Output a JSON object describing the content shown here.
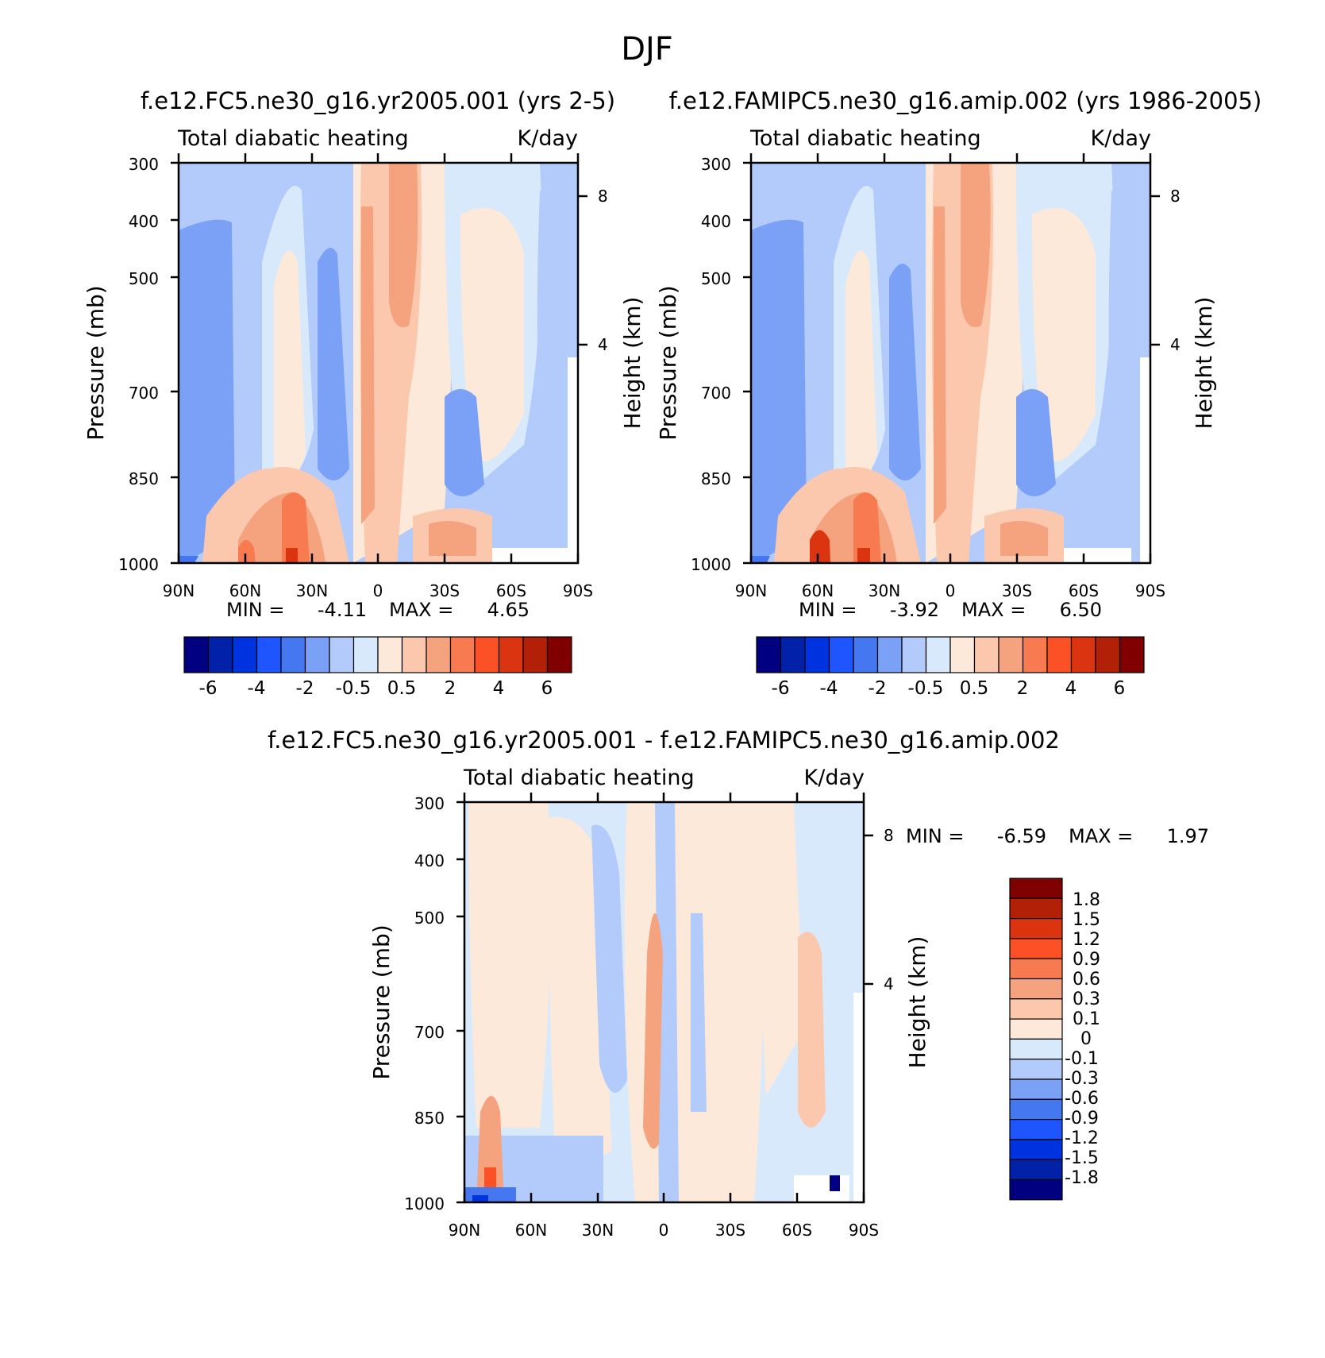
{
  "figure_title": "DJF",
  "colors": {
    "main_levels": [
      "#000080",
      "#0021a8",
      "#0033e0",
      "#1f55ff",
      "#4477f0",
      "#7ba1f7",
      "#b3cbfa",
      "#d9e9fc",
      "#fde9d9",
      "#fbc8ad",
      "#f5a27f",
      "#f77a50",
      "#fc5127",
      "#db3410",
      "#b32008",
      "#800000"
    ],
    "diff_levels": [
      "#000080",
      "#0021a8",
      "#0033e0",
      "#1f55ff",
      "#4477f0",
      "#7ba1f7",
      "#b3cbfa",
      "#d9e9fc",
      "#fde9d9",
      "#fbc8ad",
      "#f5a27f",
      "#f77a50",
      "#fc5127",
      "#db3410",
      "#b32008",
      "#800000"
    ]
  },
  "panels": {
    "left": {
      "title": "f.e12.FC5.ne30_g16.yr2005.001 (yrs 2-5)",
      "subtitle_left": "Total diabatic heating",
      "subtitle_right": "K/day",
      "ylabel": "Pressure (mb)",
      "ylabel_right": "Height (km)",
      "stats": {
        "min_label": "MIN =",
        "min_value": "-4.11",
        "max_label": "MAX =",
        "max_value": "4.65"
      },
      "colorbar_labels": [
        "-6",
        "-4",
        "-2",
        "-0.5",
        "0.5",
        "2",
        "4",
        "6"
      ]
    },
    "right": {
      "title": "f.e12.FAMIPC5.ne30_g16.amip.002 (yrs 1986-2005)",
      "subtitle_left": "Total diabatic heating",
      "subtitle_right": "K/day",
      "ylabel": "Pressure (mb)",
      "ylabel_right": "Height (km)",
      "stats": {
        "min_label": "MIN =",
        "min_value": "-3.92",
        "max_label": "MAX =",
        "max_value": "6.50"
      },
      "colorbar_labels": [
        "-6",
        "-4",
        "-2",
        "-0.5",
        "0.5",
        "2",
        "4",
        "6"
      ]
    },
    "diff": {
      "title": "f.e12.FC5.ne30_g16.yr2005.001 - f.e12.FAMIPC5.ne30_g16.amip.002",
      "subtitle_left": "Total diabatic heating",
      "subtitle_right": "K/day",
      "ylabel": "Pressure (mb)",
      "ylabel_right": "Height (km)",
      "stats": {
        "min_label": "MIN =",
        "min_value": "-6.59",
        "max_label": "MAX =",
        "max_value": "1.97"
      },
      "colorbar_labels": [
        "1.8",
        "1.5",
        "1.2",
        "0.9",
        "0.6",
        "0.3",
        "0.1",
        "0",
        "-0.1",
        "-0.3",
        "-0.6",
        "-0.9",
        "-1.2",
        "-1.5",
        "-1.8"
      ]
    }
  },
  "chart_data": [
    {
      "type": "heatmap",
      "title": "f.e12.FC5.ne30_g16.yr2005.001 (yrs 2-5)",
      "variable": "Total diabatic heating",
      "units": "K/day",
      "xlabel": "",
      "ylabel": "Pressure (mb)",
      "x_ticks": [
        "90N",
        "60N",
        "30N",
        "0",
        "30S",
        "60S",
        "90S"
      ],
      "x_range": [
        90,
        -90
      ],
      "y_ticks": [
        300,
        400,
        500,
        700,
        850,
        1000
      ],
      "y_range": [
        1000,
        300
      ],
      "height_ticks_km": [
        4,
        8
      ],
      "min": -4.11,
      "max": 4.65,
      "contour_levels": [
        -6,
        -5,
        -4,
        -3,
        -2,
        -1,
        -0.5,
        0,
        0.5,
        1,
        2,
        3,
        4,
        5,
        6
      ]
    },
    {
      "type": "heatmap",
      "title": "f.e12.FAMIPC5.ne30_g16.amip.002 (yrs 1986-2005)",
      "variable": "Total diabatic heating",
      "units": "K/day",
      "xlabel": "",
      "ylabel": "Pressure (mb)",
      "x_ticks": [
        "90N",
        "60N",
        "30N",
        "0",
        "30S",
        "60S",
        "90S"
      ],
      "x_range": [
        90,
        -90
      ],
      "y_ticks": [
        300,
        400,
        500,
        700,
        850,
        1000
      ],
      "y_range": [
        1000,
        300
      ],
      "height_ticks_km": [
        4,
        8
      ],
      "min": -3.92,
      "max": 6.5,
      "contour_levels": [
        -6,
        -5,
        -4,
        -3,
        -2,
        -1,
        -0.5,
        0,
        0.5,
        1,
        2,
        3,
        4,
        5,
        6
      ]
    },
    {
      "type": "heatmap",
      "title": "f.e12.FC5.ne30_g16.yr2005.001 - f.e12.FAMIPC5.ne30_g16.amip.002",
      "variable": "Total diabatic heating",
      "units": "K/day",
      "xlabel": "",
      "ylabel": "Pressure (mb)",
      "x_ticks": [
        "90N",
        "60N",
        "30N",
        "0",
        "30S",
        "60S",
        "90S"
      ],
      "x_range": [
        90,
        -90
      ],
      "y_ticks": [
        300,
        400,
        500,
        700,
        850,
        1000
      ],
      "y_range": [
        1000,
        300
      ],
      "height_ticks_km": [
        4,
        8
      ],
      "min": -6.59,
      "max": 1.97,
      "contour_levels": [
        -1.8,
        -1.5,
        -1.2,
        -0.9,
        -0.6,
        -0.3,
        -0.1,
        0,
        0.1,
        0.3,
        0.6,
        0.9,
        1.2,
        1.5,
        1.8
      ]
    }
  ]
}
